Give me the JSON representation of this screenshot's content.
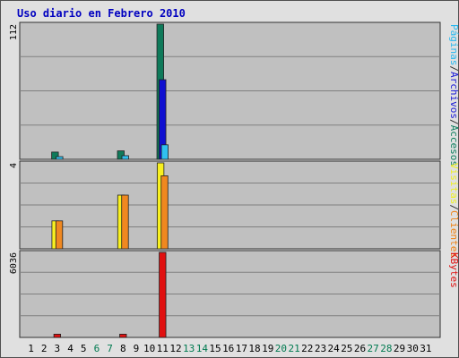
{
  "chart_data": {
    "type": "bar",
    "title": "Uso diario en Febrero 2010",
    "days": [
      "1",
      "2",
      "3",
      "4",
      "5",
      "6",
      "7",
      "8",
      "9",
      "10",
      "11",
      "12",
      "13",
      "14",
      "15",
      "16",
      "17",
      "18",
      "19",
      "20",
      "21",
      "22",
      "23",
      "24",
      "25",
      "26",
      "27",
      "28",
      "29",
      "30",
      "31"
    ],
    "weekend_days": [
      "6",
      "7",
      "13",
      "14",
      "20",
      "21",
      "27",
      "28"
    ],
    "panels": [
      {
        "max_label": "112",
        "ymax": 112,
        "legend": [
          {
            "text": "Accesos",
            "color": "#108060"
          },
          {
            "text": "/",
            "color": "#303030"
          },
          {
            "text": "Archivos",
            "color": "#1a1ad8"
          },
          {
            "text": "/",
            "color": "#303030"
          },
          {
            "text": "Páginas",
            "color": "#28b8f0"
          }
        ],
        "series": [
          {
            "name": "Accesos",
            "color": "#0f7a5a",
            "values": [
              0,
              0,
              6,
              0,
              0,
              0,
              0,
              7,
              0,
              0,
              112,
              0,
              0,
              0,
              0,
              0,
              0,
              0,
              0,
              0,
              0,
              0,
              0,
              0,
              0,
              0,
              0,
              0,
              0,
              0,
              0
            ]
          },
          {
            "name": "Archivos",
            "color": "#1010d0",
            "values": [
              0,
              0,
              0,
              0,
              0,
              0,
              0,
              0,
              0,
              0,
              66,
              0,
              0,
              0,
              0,
              0,
              0,
              0,
              0,
              0,
              0,
              0,
              0,
              0,
              0,
              0,
              0,
              0,
              0,
              0,
              0
            ]
          },
          {
            "name": "Páginas",
            "color": "#30c0f0",
            "values": [
              0,
              0,
              2,
              0,
              0,
              0,
              0,
              3,
              0,
              0,
              12,
              0,
              0,
              0,
              0,
              0,
              0,
              0,
              0,
              0,
              0,
              0,
              0,
              0,
              0,
              0,
              0,
              0,
              0,
              0,
              0
            ]
          }
        ]
      },
      {
        "max_label": "4",
        "ymax": 4,
        "legend": [
          {
            "text": "Clientes",
            "color": "#f08010"
          },
          {
            "text": "/",
            "color": "#303030"
          },
          {
            "text": "Visitas",
            "color": "#f0f020"
          }
        ],
        "series": [
          {
            "name": "Visitas",
            "color": "#f8f020",
            "values": [
              0,
              0,
              1.3,
              0,
              0,
              0,
              0,
              2.5,
              0,
              0,
              4,
              0,
              0,
              0,
              0,
              0,
              0,
              0,
              0,
              0,
              0,
              0,
              0,
              0,
              0,
              0,
              0,
              0,
              0,
              0,
              0
            ]
          },
          {
            "name": "Clientes",
            "color": "#f08820",
            "values": [
              0,
              0,
              1.3,
              0,
              0,
              0,
              0,
              2.5,
              0,
              0,
              3.4,
              0,
              0,
              0,
              0,
              0,
              0,
              0,
              0,
              0,
              0,
              0,
              0,
              0,
              0,
              0,
              0,
              0,
              0,
              0,
              0
            ]
          }
        ]
      },
      {
        "max_label": "6036",
        "ymax": 6036,
        "legend": [
          {
            "text": "KBytes",
            "color": "#e01010"
          }
        ],
        "series": [
          {
            "name": "KBytes",
            "color": "#e01010",
            "values": [
              0,
              0,
              230,
              0,
              0,
              0,
              0,
              230,
              0,
              0,
              6036,
              0,
              0,
              0,
              0,
              0,
              0,
              0,
              0,
              0,
              0,
              0,
              0,
              0,
              0,
              0,
              0,
              0,
              0,
              0,
              0
            ]
          }
        ]
      }
    ],
    "colors": {
      "plot_bg": "#c0c0c0",
      "frame_bg": "#e0e0e0",
      "title": "#0000c0",
      "weekday": "#000000",
      "weekend": "#007a50",
      "grid": "#808080"
    }
  }
}
